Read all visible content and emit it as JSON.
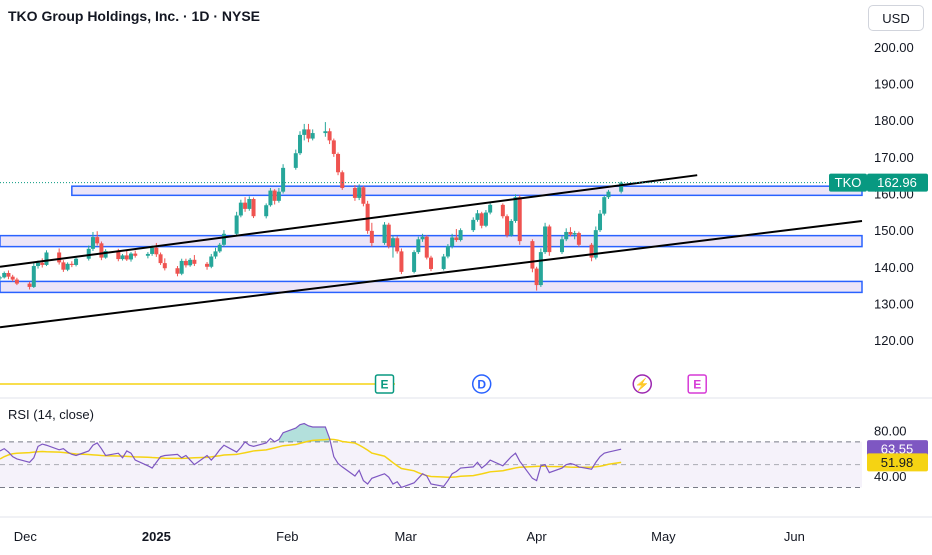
{
  "header": {
    "symbol_title": "TKO Group Holdings, Inc. · 1D · NYSE",
    "currency": "USD"
  },
  "colors": {
    "up": "#26a69a",
    "down": "#ef5350",
    "zone_fill": "#e6dcf5",
    "zone_border": "#2962ff",
    "trendline": "#000000",
    "rsi_line": "#7e57c2",
    "rsi_ma": "#f5d313",
    "last_price_bg": "#089981",
    "rsi_label_bg": "#7e57c2",
    "rsi_ma_label_bg": "#f5d313"
  },
  "chart_data": [
    {
      "type": "candlestick",
      "y_ticks": [
        "200.00",
        "190.00",
        "180.00",
        "170.00",
        "160.00",
        "150.00",
        "140.00",
        "130.00",
        "120.00"
      ],
      "ylim": [
        114,
        203
      ],
      "x_ticks": [
        {
          "label": "Dec",
          "date": "2024-12-01"
        },
        {
          "label": "2025",
          "date": "2025-01-01"
        },
        {
          "label": "Feb",
          "date": "2025-02-01"
        },
        {
          "label": "Mar",
          "date": "2025-03-01"
        },
        {
          "label": "Apr",
          "date": "2025-04-01"
        },
        {
          "label": "May",
          "date": "2025-05-01"
        },
        {
          "label": "Jun",
          "date": "2025-06-01"
        }
      ],
      "xlim": [
        "2024-11-25",
        "2025-06-17"
      ],
      "last_price": {
        "symbol": "TKO",
        "value": "162.96"
      },
      "zones": [
        {
          "start": "2024-12-12",
          "y_low": 159.5,
          "y_high": 162
        },
        {
          "start": "2024-11-25",
          "y_low": 145.5,
          "y_high": 148.5
        },
        {
          "start": "2024-11-25",
          "y_low": 133,
          "y_high": 136
        }
      ],
      "trendlines": [
        {
          "start": [
            "2024-11-25",
            140
          ],
          "end": [
            "2025-05-09",
            165
          ]
        },
        {
          "start": [
            "2024-11-25",
            123.5
          ],
          "end": [
            "2025-06-17",
            152.5
          ]
        }
      ],
      "event_markers": [
        {
          "label": "E",
          "date": "2025-02-24",
          "color": "#089981"
        },
        {
          "label": "D",
          "date": "2025-03-19",
          "color": "#2962ff"
        },
        {
          "label": "⚡",
          "date": "2025-04-26",
          "color": "#9c27b0"
        },
        {
          "label": "E",
          "date": "2025-05-09",
          "color": "#d63ad6"
        }
      ],
      "candles": [
        [
          137.0,
          137.5,
          136.3,
          137.1
        ],
        [
          137.1,
          138.7,
          136.8,
          138.3
        ],
        [
          138.3,
          139.0,
          136.6,
          137.3
        ],
        [
          137.3,
          137.8,
          136.0,
          136.5
        ],
        [
          136.5,
          137.0,
          135.0,
          135.4
        ],
        [
          135.4,
          135.9,
          133.8,
          134.5
        ],
        [
          134.5,
          141.0,
          134.2,
          140.2
        ],
        [
          140.2,
          141.7,
          139.5,
          141.1
        ],
        [
          141.1,
          142.3,
          139.8,
          140.5
        ],
        [
          140.5,
          144.5,
          140.2,
          143.9
        ],
        [
          143.9,
          145.0,
          140.6,
          141.2
        ],
        [
          141.2,
          141.8,
          138.6,
          139.2
        ],
        [
          139.2,
          141.2,
          138.8,
          140.8
        ],
        [
          140.8,
          141.5,
          139.9,
          140.5
        ],
        [
          140.5,
          142.5,
          140.1,
          142.2
        ],
        [
          142.2,
          145.8,
          141.7,
          144.9
        ],
        [
          144.9,
          149.5,
          144.3,
          148.1
        ],
        [
          148.1,
          149.7,
          145.8,
          146.4
        ],
        [
          146.4,
          146.9,
          141.8,
          142.5
        ],
        [
          142.5,
          144.8,
          142.2,
          144.3
        ],
        [
          144.3,
          144.9,
          141.5,
          142.1
        ],
        [
          142.1,
          143.5,
          141.7,
          143.1
        ],
        [
          143.1,
          144.3,
          141.6,
          142.0
        ],
        [
          142.0,
          144.0,
          141.4,
          143.6
        ],
        [
          143.6,
          144.4,
          142.5,
          143.0
        ],
        [
          143.0,
          144.0,
          142.3,
          143.5
        ],
        [
          143.5,
          145.8,
          143.0,
          145.2
        ],
        [
          145.2,
          146.5,
          142.7,
          143.4
        ],
        [
          143.4,
          143.9,
          140.5,
          141.0
        ],
        [
          141.0,
          142.3,
          139.0,
          139.6
        ],
        [
          139.6,
          140.2,
          137.4,
          138.1
        ],
        [
          138.1,
          142.2,
          137.7,
          141.6
        ],
        [
          141.6,
          142.2,
          139.8,
          140.4
        ],
        [
          140.4,
          142.4,
          140.0,
          141.9
        ],
        [
          141.9,
          143.2,
          140.2,
          140.8
        ],
        [
          140.8,
          141.3,
          139.2,
          140.0
        ],
        [
          140.0,
          143.5,
          139.6,
          142.8
        ],
        [
          142.8,
          145.2,
          142.2,
          144.2
        ],
        [
          144.2,
          146.5,
          143.8,
          146.0
        ],
        [
          146.0,
          150.0,
          145.5,
          149.0
        ],
        [
          149.0,
          155.0,
          148.5,
          154.0
        ],
        [
          154.0,
          158.3,
          153.5,
          157.5
        ],
        [
          157.5,
          159.0,
          155.0,
          155.8
        ],
        [
          155.8,
          159.2,
          155.3,
          158.5
        ],
        [
          158.5,
          158.9,
          153.3,
          153.8
        ],
        [
          153.8,
          157.3,
          153.2,
          156.8
        ],
        [
          156.8,
          161.5,
          156.4,
          160.8
        ],
        [
          160.8,
          161.2,
          157.0,
          158.0
        ],
        [
          158.0,
          161.5,
          157.5,
          160.5
        ],
        [
          160.5,
          168.0,
          160.0,
          167.0
        ],
        [
          167.0,
          172.0,
          166.5,
          171.0
        ],
        [
          171.0,
          177.0,
          170.5,
          176.0
        ],
        [
          176.0,
          179.0,
          174.5,
          177.5
        ],
        [
          177.5,
          179.0,
          174.0,
          175.0
        ],
        [
          175.0,
          177.5,
          174.5,
          176.5
        ],
        [
          176.5,
          179.5,
          175.5,
          177.0
        ],
        [
          177.0,
          177.8,
          173.5,
          174.5
        ],
        [
          174.5,
          175.0,
          170.0,
          170.8
        ],
        [
          170.8,
          171.2,
          165.0,
          165.8
        ],
        [
          165.8,
          166.3,
          161.0,
          161.5
        ],
        [
          161.5,
          162.3,
          158.0,
          158.8
        ],
        [
          158.8,
          162.5,
          158.2,
          161.7
        ],
        [
          161.7,
          162.1,
          156.5,
          157.2
        ],
        [
          157.2,
          158.0,
          149.0,
          149.8
        ],
        [
          149.8,
          152.0,
          145.5,
          146.5
        ],
        [
          146.5,
          152.2,
          146.0,
          151.5
        ],
        [
          151.5,
          152.0,
          145.0,
          145.6
        ],
        [
          145.6,
          148.5,
          142.5,
          147.8
        ],
        [
          147.8,
          148.3,
          143.6,
          144.2
        ],
        [
          144.2,
          145.0,
          138.0,
          138.6
        ],
        [
          138.6,
          144.5,
          138.2,
          144.0
        ],
        [
          144.0,
          148.2,
          143.5,
          147.5
        ],
        [
          147.5,
          149.0,
          146.8,
          148.2
        ],
        [
          148.2,
          148.6,
          142.0,
          142.5
        ],
        [
          142.5,
          143.0,
          138.8,
          139.4
        ],
        [
          139.4,
          143.5,
          139.0,
          142.8
        ],
        [
          142.8,
          146.2,
          142.3,
          145.6
        ],
        [
          145.6,
          149.0,
          145.0,
          148.0
        ],
        [
          148.0,
          150.3,
          146.8,
          147.3
        ],
        [
          147.3,
          150.5,
          146.9,
          150.0
        ],
        [
          150.0,
          153.5,
          149.5,
          152.8
        ],
        [
          152.8,
          155.5,
          152.3,
          154.6
        ],
        [
          154.6,
          155.0,
          150.5,
          151.2
        ],
        [
          151.2,
          155.5,
          150.8,
          154.8
        ],
        [
          154.8,
          157.5,
          154.3,
          156.9
        ],
        [
          156.9,
          157.3,
          153.2,
          153.8
        ],
        [
          153.8,
          154.3,
          148.0,
          148.6
        ],
        [
          148.6,
          153.0,
          148.2,
          152.5
        ],
        [
          152.5,
          159.8,
          152.0,
          159.0
        ],
        [
          159.0,
          159.5,
          146.0,
          147.0
        ],
        [
          147.0,
          147.5,
          138.5,
          139.5
        ],
        [
          139.5,
          140.0,
          133.5,
          135.0
        ],
        [
          135.0,
          145.0,
          134.5,
          144.0
        ],
        [
          144.0,
          152.0,
          143.5,
          151.0
        ],
        [
          151.0,
          151.5,
          143.0,
          144.0
        ],
        [
          144.0,
          148.5,
          143.5,
          147.5
        ],
        [
          147.5,
          150.5,
          147.0,
          149.5
        ],
        [
          149.5,
          150.8,
          148.3,
          148.8
        ],
        [
          148.8,
          149.8,
          147.5,
          149.2
        ],
        [
          149.2,
          149.6,
          145.5,
          146.0
        ],
        [
          146.0,
          146.5,
          141.5,
          142.5
        ],
        [
          142.5,
          151.0,
          142.0,
          150.0
        ],
        [
          150.0,
          155.5,
          149.5,
          154.5
        ],
        [
          154.5,
          159.5,
          154.0,
          159.0
        ],
        [
          159.0,
          161.0,
          158.5,
          160.5
        ],
        [
          160.5,
          163.3,
          160.0,
          162.96
        ]
      ]
    },
    {
      "type": "line",
      "title": "RSI (14, close)",
      "y_ticks": [
        "80.00",
        "40.00"
      ],
      "ylim": [
        26,
        90
      ],
      "bands": [
        70,
        30
      ],
      "xlim": [
        "2024-11-25",
        "2025-06-17"
      ],
      "current": {
        "rsi": "63.55",
        "rsi_ma": "51.98"
      },
      "series": [
        {
          "name": "RSI",
          "start_date": "2024-11-25",
          "values": [
            62,
            64,
            61,
            57,
            55,
            52,
            56,
            66,
            68,
            67,
            63,
            64,
            61,
            59,
            58,
            62,
            67,
            69,
            64,
            58,
            60,
            56,
            62,
            60,
            54,
            49,
            47,
            52,
            57,
            58,
            59,
            56,
            58,
            54,
            50,
            58,
            54,
            58,
            63,
            67,
            61,
            65,
            70,
            67,
            66,
            69,
            73,
            70,
            72,
            78,
            82,
            85,
            86,
            84,
            83,
            83,
            73,
            57,
            51,
            48,
            40,
            45,
            36,
            33,
            38,
            42,
            39,
            33,
            35,
            30,
            34,
            38,
            42,
            40,
            33,
            31,
            36,
            42,
            44,
            47,
            48,
            52,
            47,
            50,
            54,
            49,
            53,
            57,
            60,
            53,
            38,
            36,
            49,
            50,
            43,
            47,
            50,
            51,
            50,
            48,
            46,
            52,
            57,
            60,
            61,
            63.55
          ]
        },
        {
          "name": "RSI-based MA",
          "start_date": "2024-11-25",
          "values": [
            55,
            57,
            58.5,
            59.5,
            60,
            60.5,
            61,
            61.3,
            61.5,
            61.3,
            61,
            60.6,
            60.2,
            59.8,
            59.3,
            58.9,
            58.6,
            58.3,
            58,
            57.8,
            57.6,
            57.4,
            57.2,
            57,
            56.8,
            56.5,
            56.2,
            56,
            55.8,
            55.6,
            55.5,
            55.5,
            55.6,
            55.8,
            56,
            56.4,
            56.8,
            57.3,
            57.8,
            58.4,
            59,
            59.7,
            60.4,
            61.2,
            62,
            62.9,
            63.8,
            64.7,
            65.6,
            66.6,
            67.6,
            68.6,
            69.6,
            70.5,
            71.3,
            71.9,
            72.2,
            72,
            71.4,
            70.3,
            68.9,
            67.1,
            65,
            62.7,
            60.1,
            57.4,
            54.6,
            51.7,
            49,
            46.6,
            44.6,
            42.9,
            41.5,
            40.4,
            39.6,
            39.1,
            38.9,
            39,
            39.3,
            39.8,
            40.4,
            41.1,
            41.9,
            42.8,
            43.7,
            44.6,
            45.5,
            46.3,
            47.1,
            47.7,
            48.2,
            48.5,
            48.6,
            48.6,
            48.4,
            48.2,
            48,
            47.8,
            47.7,
            47.7,
            47.8,
            48.1,
            48.6,
            49.3,
            50.3,
            51.98
          ]
        }
      ]
    }
  ]
}
